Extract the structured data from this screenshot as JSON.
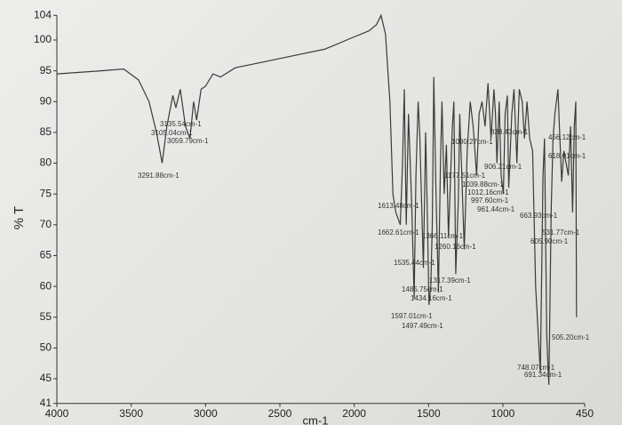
{
  "chart_data": {
    "type": "line",
    "y_label": "% T",
    "x_label": "cm-1",
    "xlim": [
      4000,
      450
    ],
    "ylim": [
      41,
      104
    ],
    "xticks": [
      4000,
      3500,
      3000,
      2500,
      2000,
      1500,
      1000,
      450
    ],
    "yticks": [
      41,
      45,
      50,
      55,
      60,
      65,
      70,
      75,
      80,
      85,
      90,
      95,
      100,
      104
    ],
    "color": "#3a3a3a",
    "x": [
      4000,
      3700,
      3550,
      3450,
      3380,
      3330,
      3292,
      3260,
      3220,
      3200,
      3170,
      3135,
      3105,
      3080,
      3060,
      3030,
      3000,
      2950,
      2900,
      2800,
      2600,
      2400,
      2200,
      2100,
      2000,
      1950,
      1900,
      1850,
      1820,
      1790,
      1760,
      1740,
      1720,
      1690,
      1675,
      1663,
      1650,
      1635,
      1613,
      1597,
      1585,
      1570,
      1560,
      1535,
      1520,
      1510,
      1497,
      1485,
      1475,
      1465,
      1450,
      1434,
      1420,
      1410,
      1395,
      1380,
      1366,
      1340,
      1330,
      1317,
      1300,
      1290,
      1260,
      1240,
      1220,
      1200,
      1177,
      1160,
      1140,
      1120,
      1100,
      1080,
      1060,
      1050,
      1040,
      1025,
      1012,
      997,
      985,
      970,
      961,
      940,
      925,
      906,
      890,
      870,
      855,
      838,
      820,
      800,
      780,
      748,
      730,
      720,
      705,
      691,
      675,
      663,
      650,
      630,
      615,
      605,
      590,
      560,
      545,
      531,
      520,
      510,
      505
    ],
    "values": [
      94.5,
      95,
      95.3,
      93.5,
      90,
      85,
      80,
      86,
      91,
      89,
      92,
      86,
      84,
      90,
      87,
      92,
      92.5,
      94.5,
      94,
      95.5,
      96.5,
      97.5,
      98.5,
      99.5,
      100.5,
      101,
      101.5,
      102.5,
      104,
      101,
      90,
      75,
      72,
      70,
      80,
      92,
      70,
      88,
      73,
      58,
      78,
      90,
      85,
      63,
      85,
      74,
      57,
      60,
      70,
      94,
      75,
      59,
      80,
      90,
      75,
      83,
      68,
      86,
      90,
      62,
      74,
      88,
      66,
      82,
      90,
      86,
      78,
      88,
      90,
      86,
      93,
      84,
      92,
      88,
      80,
      90,
      78,
      75,
      88,
      91,
      76,
      88,
      92,
      80,
      92,
      90,
      84,
      90,
      84,
      82,
      60,
      46,
      78,
      84,
      52,
      44,
      73,
      84,
      88,
      92,
      83,
      77,
      82,
      78,
      86,
      72,
      86,
      90,
      55
    ],
    "annotations": [
      "3291.88cm-1",
      "3135.54cm-1",
      "3105.04cm-1",
      "3059.79cm-1",
      "1662.61cm-1",
      "1613.48cm-1",
      "1597.01cm-1",
      "1535.44cm-1",
      "1497.49cm-1",
      "1485.75cm-1",
      "1434.16cm-1",
      "1366.11cm-1",
      "1317.39cm-1",
      "1260.16cm-1",
      "1177.51cm-1",
      "1080.27cm-1",
      "1039.88cm-1",
      "1012.16cm-1",
      "997.60cm-1",
      "961.44cm-1",
      "906.21cm-1",
      "838.43cm-1",
      "618.01cm-1",
      "663.93cm-1",
      "605.90cm-1",
      "531.77cm-1",
      "456.12cm-1",
      "505.20cm-1",
      "748.07cm-1",
      "691.34cm-1"
    ]
  }
}
